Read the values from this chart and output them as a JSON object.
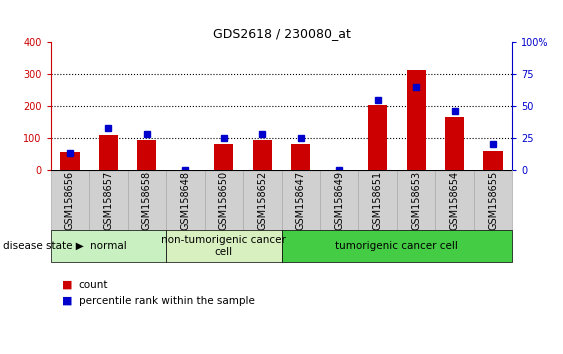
{
  "title": "GDS2618 / 230080_at",
  "samples": [
    "GSM158656",
    "GSM158657",
    "GSM158658",
    "GSM158648",
    "GSM158650",
    "GSM158652",
    "GSM158647",
    "GSM158649",
    "GSM158651",
    "GSM158653",
    "GSM158654",
    "GSM158655"
  ],
  "counts": [
    55,
    110,
    95,
    0,
    80,
    95,
    82,
    0,
    205,
    315,
    165,
    60
  ],
  "percentiles": [
    13,
    33,
    28,
    0,
    25,
    28,
    25,
    0,
    55,
    65,
    46,
    20
  ],
  "groups": [
    {
      "label": "normal",
      "start": 0,
      "end": 3,
      "color": "#c8f0c0"
    },
    {
      "label": "non-tumorigenic cancer\ncell",
      "start": 3,
      "end": 6,
      "color": "#d8f0c0"
    },
    {
      "label": "tumorigenic cancer cell",
      "start": 6,
      "end": 12,
      "color": "#44cc44"
    }
  ],
  "ylim_left": [
    0,
    400
  ],
  "ylim_right": [
    0,
    100
  ],
  "yticks_left": [
    0,
    100,
    200,
    300,
    400
  ],
  "yticks_right": [
    0,
    25,
    50,
    75,
    100
  ],
  "bar_color": "#cc0000",
  "dot_color": "#0000cc",
  "background_color": "#ffffff",
  "left_axis_color": "#cc0000",
  "right_axis_color": "#0000cc",
  "sample_box_color": "#d0d0d0",
  "sample_box_edge": "#aaaaaa",
  "disease_state_label": "disease state",
  "legend_count": "count",
  "legend_percentile": "percentile rank within the sample",
  "grid_values": [
    100,
    200,
    300
  ],
  "bar_width": 0.5,
  "marker_size": 5,
  "title_fontsize": 9,
  "tick_fontsize": 7,
  "label_fontsize": 7.5,
  "legend_fontsize": 7.5
}
